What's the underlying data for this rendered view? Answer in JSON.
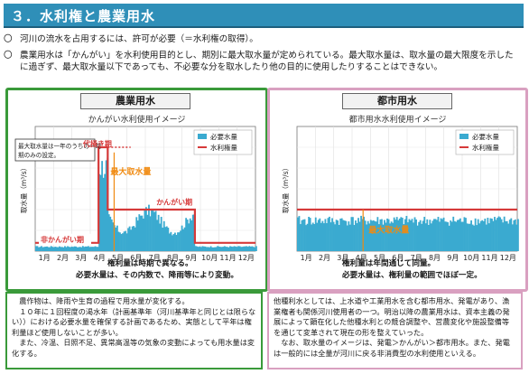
{
  "header": {
    "title": "３．水利権と農業用水"
  },
  "bullets": [
    {
      "mark": "〇",
      "text": "河川の流水を占用するには、許可が必要（＝水利権の取得）。"
    },
    {
      "mark": "〇",
      "text": "農業用水は「かんがい」を水利使用目的とし、期別に最大取水量が定められている。最大取水量は、取水量の最大限度を示したに過ぎず、最大取水量以下であっても、不必要な分を取水したり他の目的に使用したりすることはできない。"
    }
  ],
  "colors": {
    "title_bar": "#2f8fb8",
    "agri_frame": "#3a9a3a",
    "urban_frame": "#d9a0c0",
    "need": "#3aaad0",
    "right": "#d63a3a",
    "max_label": "#f08a10"
  },
  "agri": {
    "panel_title": "農業用水",
    "note_box": "最大取水量は一年のうちの一時期のみの設定。",
    "caption": [
      "権利量は時期で異なる。",
      "必要水量は、その内数で、降雨等により変動。"
    ],
    "paragraphs": [
      "　農作物は、降雨や生育の過程で用水量が変化する。",
      "　１０年に１回程度の渇水年（計画基準年（河川基準年と同じとは限らない））における必要水量を確保する計画であるため、実態として平年は権利量ほど使用しないことが多い。",
      "　また、冷温、日照不足、異常高温等の気象の変動によっても用水量は変化する。"
    ]
  },
  "urban": {
    "panel_title": "都市用水",
    "caption": [
      "権利量は年間通じて同量。",
      "必要水量は、権利量の範囲でほぼ一定。"
    ],
    "paragraphs": [
      "他種利水としては、上水道や工業用水を含む都市用水、発電があり、漁業権者も関係河川使用者の一つ。明治以降の農業用水は、資本主義の発展によって顕在化した他種水利との競合調整や、営農変化や施設整備等を通じて変革されて現在の形を整えていった。",
      "　なお、取水量のイメージは、発電＞かんがい＞都市用水。また、発電は一般的には全量が河川に戻る非消費型の水利使用といえる。"
    ]
  },
  "chart_data": [
    {
      "type": "area",
      "title": "かんがい水利使用イメージ",
      "ylabel": "取水量（m³/s）",
      "categories": [
        "1月",
        "2月",
        "3月",
        "4月",
        "5月",
        "6月",
        "7月",
        "8月",
        "9月",
        "10月",
        "11月",
        "12月"
      ],
      "legend": [
        "必要水量",
        "水利権量"
      ],
      "legend_position": "top-right",
      "annotations": [
        "代掻き期",
        "最大取水量",
        "かんがい期",
        "非かんがい期"
      ],
      "right_steps": [
        {
          "from": 0,
          "to": 3.45,
          "value": 8
        },
        {
          "from": 3.45,
          "to": 3.95,
          "value": 100
        },
        {
          "from": 3.95,
          "to": 8.7,
          "value": 40
        },
        {
          "from": 8.7,
          "to": 12,
          "value": 8
        }
      ],
      "max_intake": 100
    },
    {
      "type": "area",
      "title": "都市用水水利使用イメージ",
      "ylabel": "取水量（m³/s）",
      "categories": [
        "1月",
        "2月",
        "3月",
        "4月",
        "5月",
        "6月",
        "7月",
        "8月",
        "9月",
        "10月",
        "11月",
        "12月"
      ],
      "legend": [
        "必要水量",
        "水利権量"
      ],
      "legend_position": "top-right",
      "annotations": [
        "最大取水量"
      ],
      "right_steps": [
        {
          "from": 0,
          "to": 12,
          "value": 40
        }
      ],
      "max_intake": 40
    }
  ]
}
